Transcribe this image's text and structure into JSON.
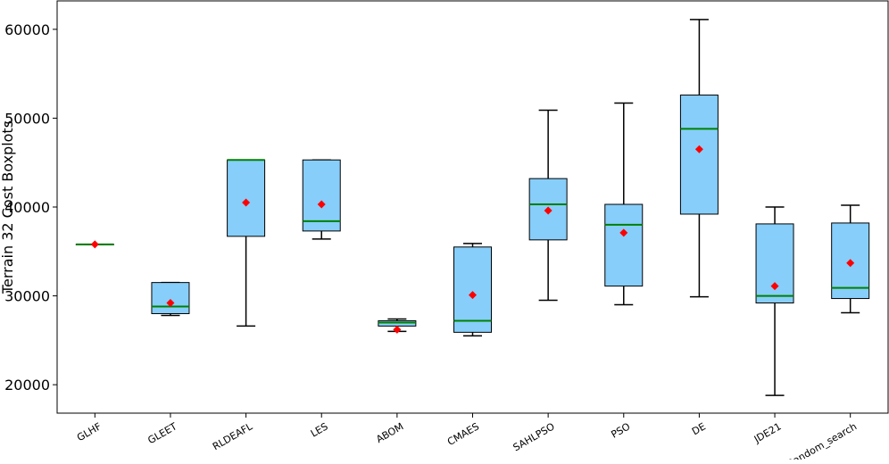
{
  "chart_data": {
    "type": "boxplot",
    "title": "",
    "xlabel": "",
    "ylabel": "Terrain 32 Cost Boxplots",
    "ylim": [
      16800,
      63200
    ],
    "yticks": [
      20000,
      30000,
      40000,
      50000,
      60000
    ],
    "ytick_labels": [
      "20000",
      "30000",
      "40000",
      "50000",
      "60000"
    ],
    "categories": [
      "GLHF",
      "GLEET",
      "RLDEAFL",
      "LES",
      "ABOM",
      "CMAES",
      "SAHLPSO",
      "PSO",
      "DE",
      "JDE21",
      "Random_search"
    ],
    "boxes": [
      {
        "name": "GLHF",
        "whisker_low": 35800,
        "q1": 35800,
        "median": 35800,
        "q3": 35800,
        "whisker_high": 35800,
        "mean": 35800
      },
      {
        "name": "GLEET",
        "whisker_low": 27800,
        "q1": 28000,
        "median": 28800,
        "q3": 31500,
        "whisker_high": 31500,
        "mean": 29200
      },
      {
        "name": "RLDEAFL",
        "whisker_low": 26600,
        "q1": 36700,
        "median": 45300,
        "q3": 45300,
        "whisker_high": 45300,
        "mean": 40500
      },
      {
        "name": "LES",
        "whisker_low": 36400,
        "q1": 37300,
        "median": 38400,
        "q3": 45300,
        "whisker_high": 45300,
        "mean": 40300
      },
      {
        "name": "ABOM",
        "whisker_low": 26000,
        "q1": 26600,
        "median": 27000,
        "q3": 27200,
        "whisker_high": 27400,
        "mean": 26200
      },
      {
        "name": "CMAES",
        "whisker_low": 25500,
        "q1": 25900,
        "median": 27200,
        "q3": 35500,
        "whisker_high": 35900,
        "mean": 30100
      },
      {
        "name": "SAHLPSO",
        "whisker_low": 29500,
        "q1": 36300,
        "median": 40300,
        "q3": 43200,
        "whisker_high": 50900,
        "mean": 39600
      },
      {
        "name": "PSO",
        "whisker_low": 29000,
        "q1": 31100,
        "median": 38000,
        "q3": 40300,
        "whisker_high": 51700,
        "mean": 37100
      },
      {
        "name": "DE",
        "whisker_low": 29900,
        "q1": 39200,
        "median": 48800,
        "q3": 52600,
        "whisker_high": 61100,
        "mean": 46500
      },
      {
        "name": "JDE21",
        "whisker_low": 18800,
        "q1": 29200,
        "median": 30000,
        "q3": 38100,
        "whisker_high": 40000,
        "mean": 31100
      },
      {
        "name": "Random_search",
        "whisker_low": 28100,
        "q1": 29700,
        "median": 30900,
        "q3": 38200,
        "whisker_high": 40200,
        "mean": 33700
      }
    ],
    "colors": {
      "box_fill": "#87cefa",
      "box_edge": "#000000",
      "median": "#008000",
      "mean_marker": "#ff0000",
      "whisker": "#000000"
    },
    "grid": false,
    "legend": false
  }
}
